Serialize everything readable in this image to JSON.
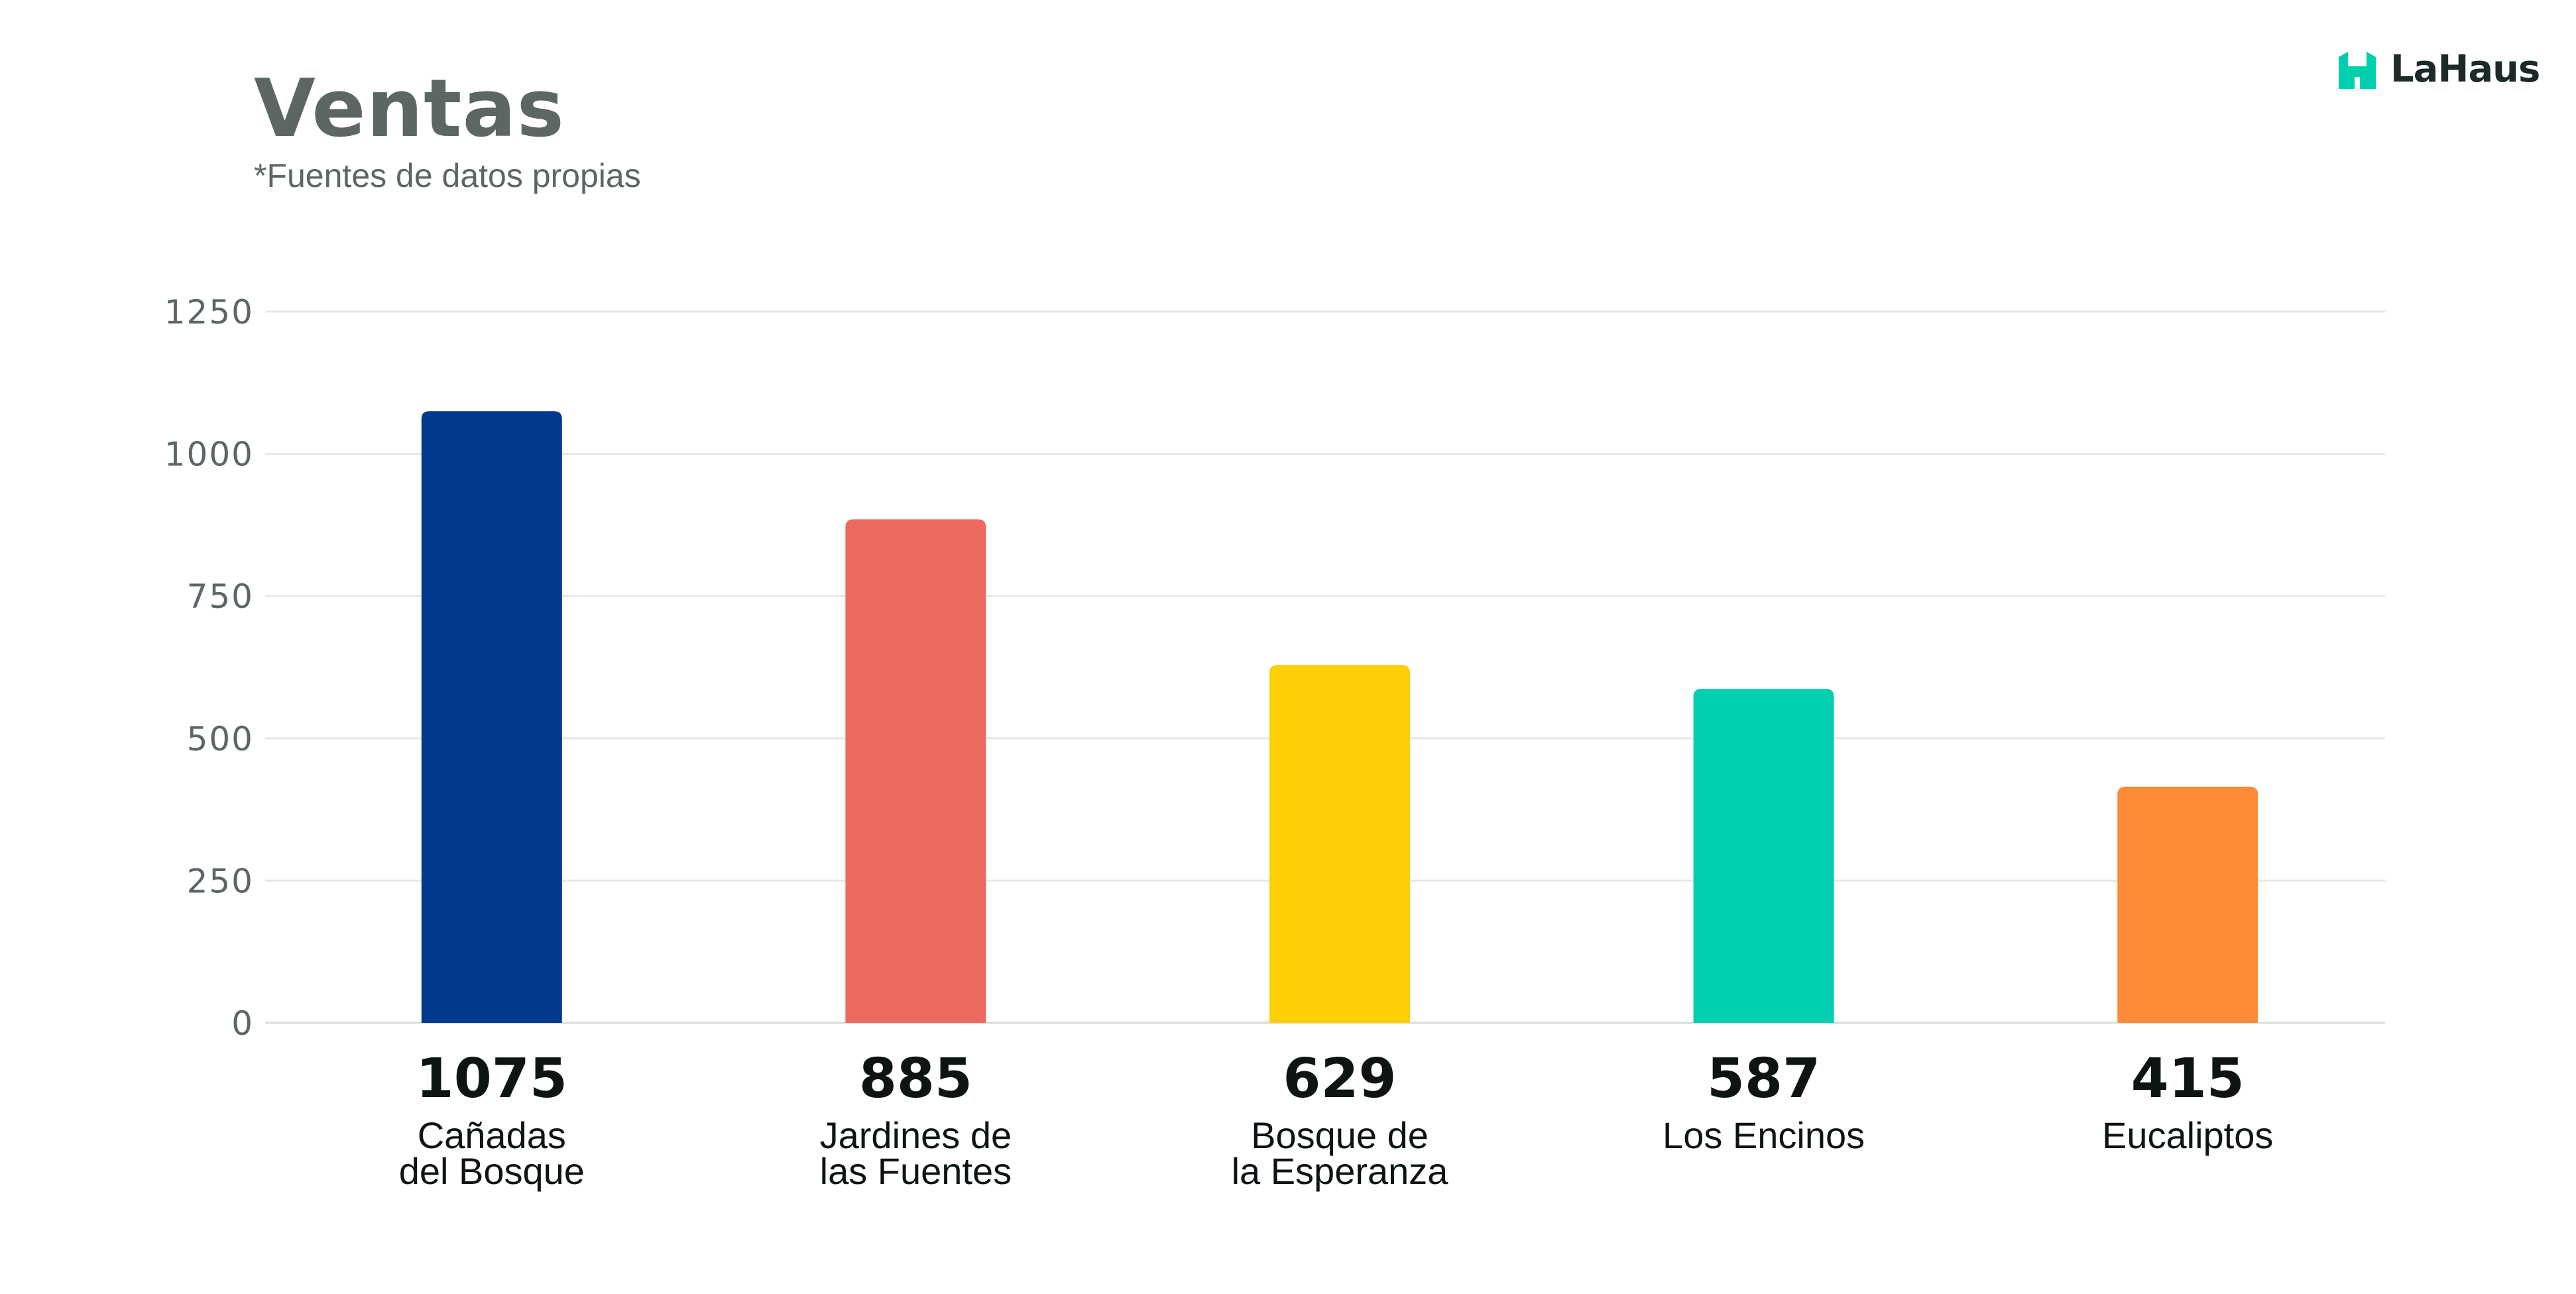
{
  "header": {
    "title": "Ventas",
    "subtitle": "*Fuentes de datos propias"
  },
  "logo": {
    "text": "LaHaus",
    "icon": "house-icon",
    "color": "#00cfae"
  },
  "chart_data": {
    "type": "bar",
    "categories": [
      [
        "Cañadas",
        "del Bosque"
      ],
      [
        "Jardines de",
        "las Fuentes"
      ],
      [
        "Bosque de",
        "la Esperanza"
      ],
      [
        "Los Encinos"
      ],
      [
        "Eucaliptos"
      ]
    ],
    "values": [
      1075,
      885,
      629,
      587,
      415
    ],
    "colors": [
      "#00398d",
      "#ed6a5f",
      "#fdcf04",
      "#00cfb0",
      "#fd8b38"
    ],
    "ylim": [
      0,
      1250
    ],
    "yticks": [
      0,
      250,
      500,
      750,
      1000,
      1250
    ],
    "grid": true,
    "title": "Ventas",
    "xlabel": "",
    "ylabel": ""
  }
}
